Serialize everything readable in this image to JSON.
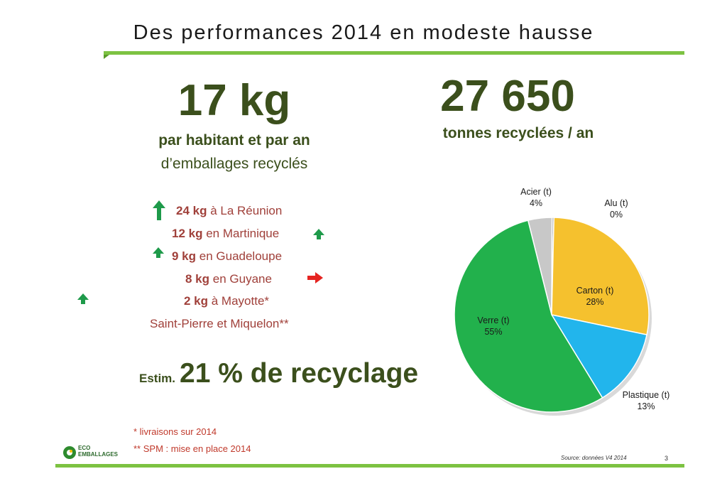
{
  "slide": {
    "title": "Des performances 2014 en modeste hausse",
    "stat_kg": {
      "value": "17 kg",
      "line1": "par habitant et par an",
      "line2": "d’emballages recyclés"
    },
    "stat_tonnes": {
      "value": "27 650",
      "line1": "tonnes recyclées / an"
    },
    "regions": [
      {
        "amount": "24 kg",
        "text": " à La Réunion"
      },
      {
        "amount": "12 kg",
        "text": " en Martinique"
      },
      {
        "amount": "9 kg",
        "text": " en Guadeloupe"
      },
      {
        "amount": "8 kg",
        "text": " en Guyane"
      },
      {
        "amount": "2 kg",
        "text": " à Mayotte*"
      },
      {
        "amount": "",
        "text": "Saint-Pierre et Miquelon**"
      }
    ],
    "recycling": {
      "prefix": "Estim.",
      "value": "21 % de recyclage"
    },
    "notes": [
      "* livraisons sur 2014",
      "** SPM : mise en place 2014"
    ],
    "logo_text": [
      "ECO",
      "EMBALLAGES"
    ],
    "source": "Source: données V4 2014",
    "page_number": "3",
    "colors": {
      "accent_green": "#7dc242",
      "text_dark_green": "#3b4f1c",
      "region_red": "#a0403a",
      "arrow_green": "#1e9a4a",
      "arrow_red": "#e52421"
    }
  },
  "chart_data": {
    "type": "pie",
    "slices": [
      {
        "label": "Acier (t)",
        "value": 4,
        "display": "4%",
        "color": "#c8c8c8"
      },
      {
        "label": "Alu (t)",
        "value": 0.3,
        "display": "0%",
        "color": "#9a9a9a"
      },
      {
        "label": "Carton (t)",
        "value": 28,
        "display": "28%",
        "color": "#f5c12e"
      },
      {
        "label": "Plastique (t)",
        "value": 13,
        "display": "13%",
        "color": "#22b5ec"
      },
      {
        "label": "Verre (t)",
        "value": 55,
        "display": "55%",
        "color": "#22b14c"
      }
    ]
  }
}
